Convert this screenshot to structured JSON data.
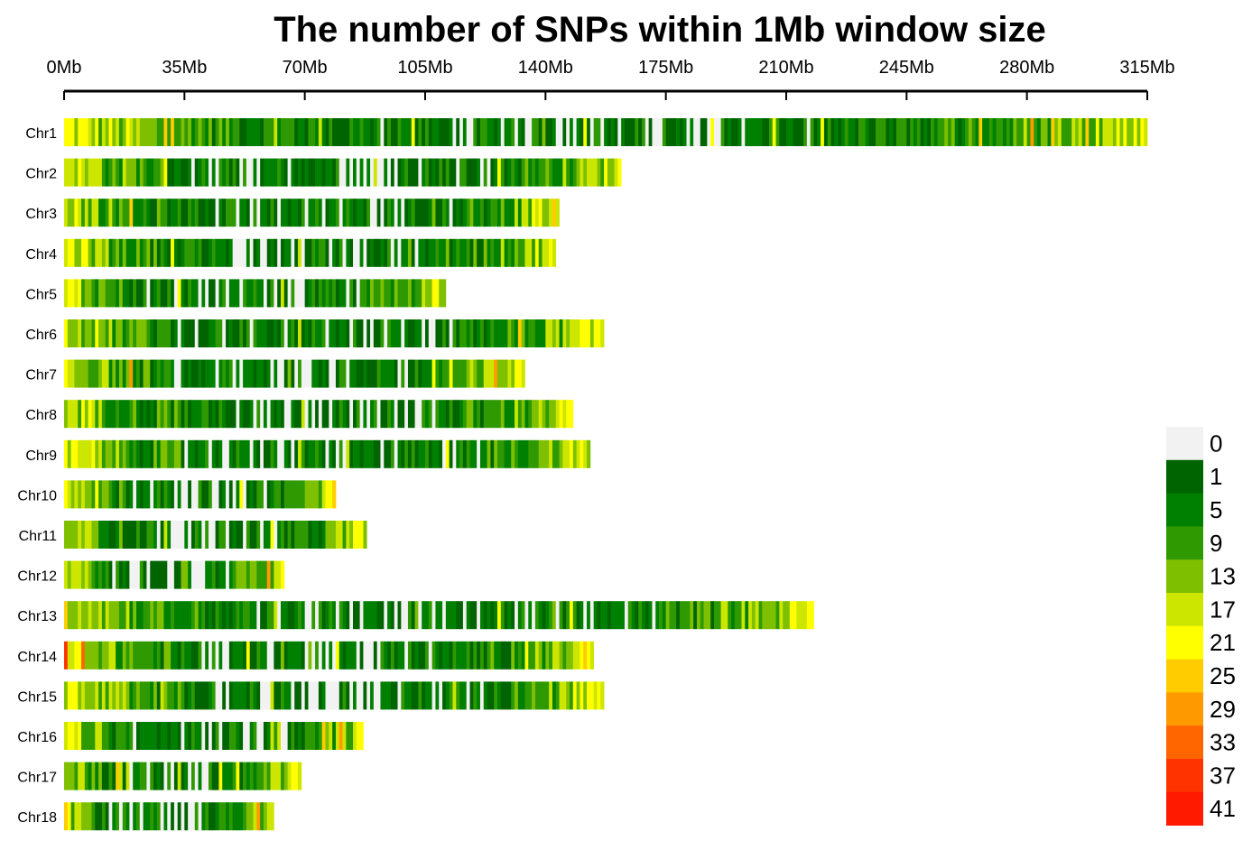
{
  "chart_data": {
    "type": "heatmap",
    "title": "The number of SNPs within 1Mb window size",
    "x_axis": {
      "unit": "Mb",
      "range": [
        0,
        315
      ],
      "tick_values": [
        0,
        35,
        70,
        105,
        140,
        175,
        210,
        245,
        280,
        315
      ],
      "tick_labels": [
        "0Mb",
        "35Mb",
        "70Mb",
        "105Mb",
        "140Mb",
        "175Mb",
        "210Mb",
        "245Mb",
        "280Mb",
        "315Mb"
      ],
      "position": "top"
    },
    "window_size_mb": 1,
    "chromosomes": [
      {
        "name": "Chr1",
        "length_mb": 315
      },
      {
        "name": "Chr2",
        "length_mb": 162
      },
      {
        "name": "Chr3",
        "length_mb": 144
      },
      {
        "name": "Chr4",
        "length_mb": 143
      },
      {
        "name": "Chr5",
        "length_mb": 111
      },
      {
        "name": "Chr6",
        "length_mb": 157
      },
      {
        "name": "Chr7",
        "length_mb": 134
      },
      {
        "name": "Chr8",
        "length_mb": 148
      },
      {
        "name": "Chr9",
        "length_mb": 153
      },
      {
        "name": "Chr10",
        "length_mb": 79
      },
      {
        "name": "Chr11",
        "length_mb": 88
      },
      {
        "name": "Chr12",
        "length_mb": 64
      },
      {
        "name": "Chr13",
        "length_mb": 218
      },
      {
        "name": "Chr14",
        "length_mb": 154
      },
      {
        "name": "Chr15",
        "length_mb": 157
      },
      {
        "name": "Chr16",
        "length_mb": 87
      },
      {
        "name": "Chr17",
        "length_mb": 69
      },
      {
        "name": "Chr18",
        "length_mb": 61
      }
    ],
    "density_profile_approx": {
      "note": "visible trend only: chromosome ends are SNP-rich (yellow/orange/red), centres are SNP-poor (green) with white gaps of 0",
      "end_snp_level": 20,
      "centre_snp_level": 4
    },
    "legend": {
      "position": "right-bottom",
      "labels": [
        "0",
        "1",
        "5",
        "9",
        "13",
        "17",
        "21",
        "25",
        "29",
        "33",
        "37",
        "41"
      ],
      "colors": [
        "#f2f2f2",
        "#006400",
        "#008000",
        "#2e9900",
        "#7ec000",
        "#cde600",
        "#ffff00",
        "#ffcc00",
        "#ff9900",
        "#ff6600",
        "#ff3300",
        "#ff1a00"
      ]
    }
  }
}
